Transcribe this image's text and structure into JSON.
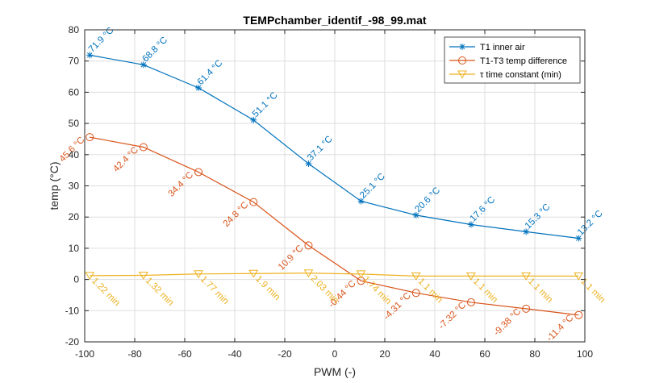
{
  "chart_data": {
    "type": "line",
    "title": "TEMPchamber_identif_-98_99.mat",
    "xlabel": "PWM (-)",
    "ylabel": "temp (°C)",
    "xlim": [
      -100,
      100
    ],
    "ylim": [
      -20,
      80
    ],
    "xticks": [
      -100,
      -80,
      -60,
      -40,
      -20,
      0,
      20,
      40,
      60,
      80,
      100
    ],
    "yticks": [
      -20,
      -10,
      0,
      10,
      20,
      30,
      40,
      50,
      60,
      70,
      80
    ],
    "grid": true,
    "legend_position": "top-right",
    "x": [
      -98,
      -76.5,
      -54.5,
      -32.5,
      -10.5,
      10.5,
      32.5,
      54.5,
      76.5,
      97.5
    ],
    "series": [
      {
        "name": "T1 inner air",
        "marker": "asterisk",
        "color": "#0072BD",
        "values": [
          71.9,
          68.8,
          61.4,
          51.1,
          37.1,
          25.1,
          20.6,
          17.6,
          15.3,
          13.2
        ],
        "labels": [
          "71.9 °C",
          "68.8 °C",
          "61.4 °C",
          "51.1 °C",
          "37.1 °C",
          "25.1 °C",
          "20.6 °C",
          "17.6 °C",
          "15.3 °C",
          "13.2 °C"
        ]
      },
      {
        "name": "T1-T3 temp difference",
        "marker": "circle",
        "color": "#D95319",
        "values": [
          45.6,
          42.4,
          34.4,
          24.8,
          10.9,
          -0.44,
          -4.31,
          -7.32,
          -9.38,
          -11.4
        ],
        "labels": [
          "45.6 °C",
          "42.4 °C",
          "34.4 °C",
          "24.8 °C",
          "10.9 °C",
          "-0.44 °C",
          "-4.31 °C",
          "-7.32 °C",
          "-9.38 °C",
          "-11.4 °C"
        ]
      },
      {
        "name": "τ time constant (min)",
        "marker": "triangle-down",
        "color": "#EDB120",
        "values": [
          1.22,
          1.32,
          1.77,
          1.9,
          2.03,
          1.74,
          1.1,
          1.1,
          1.1,
          1.1
        ],
        "labels": [
          "1.22 min",
          "1.32 min",
          "1.77 min",
          "1.9 min",
          "2.03 min",
          "1.74 min",
          "1.1 min",
          "1.1 min",
          "1.1 min",
          "1.1 min"
        ]
      }
    ]
  }
}
